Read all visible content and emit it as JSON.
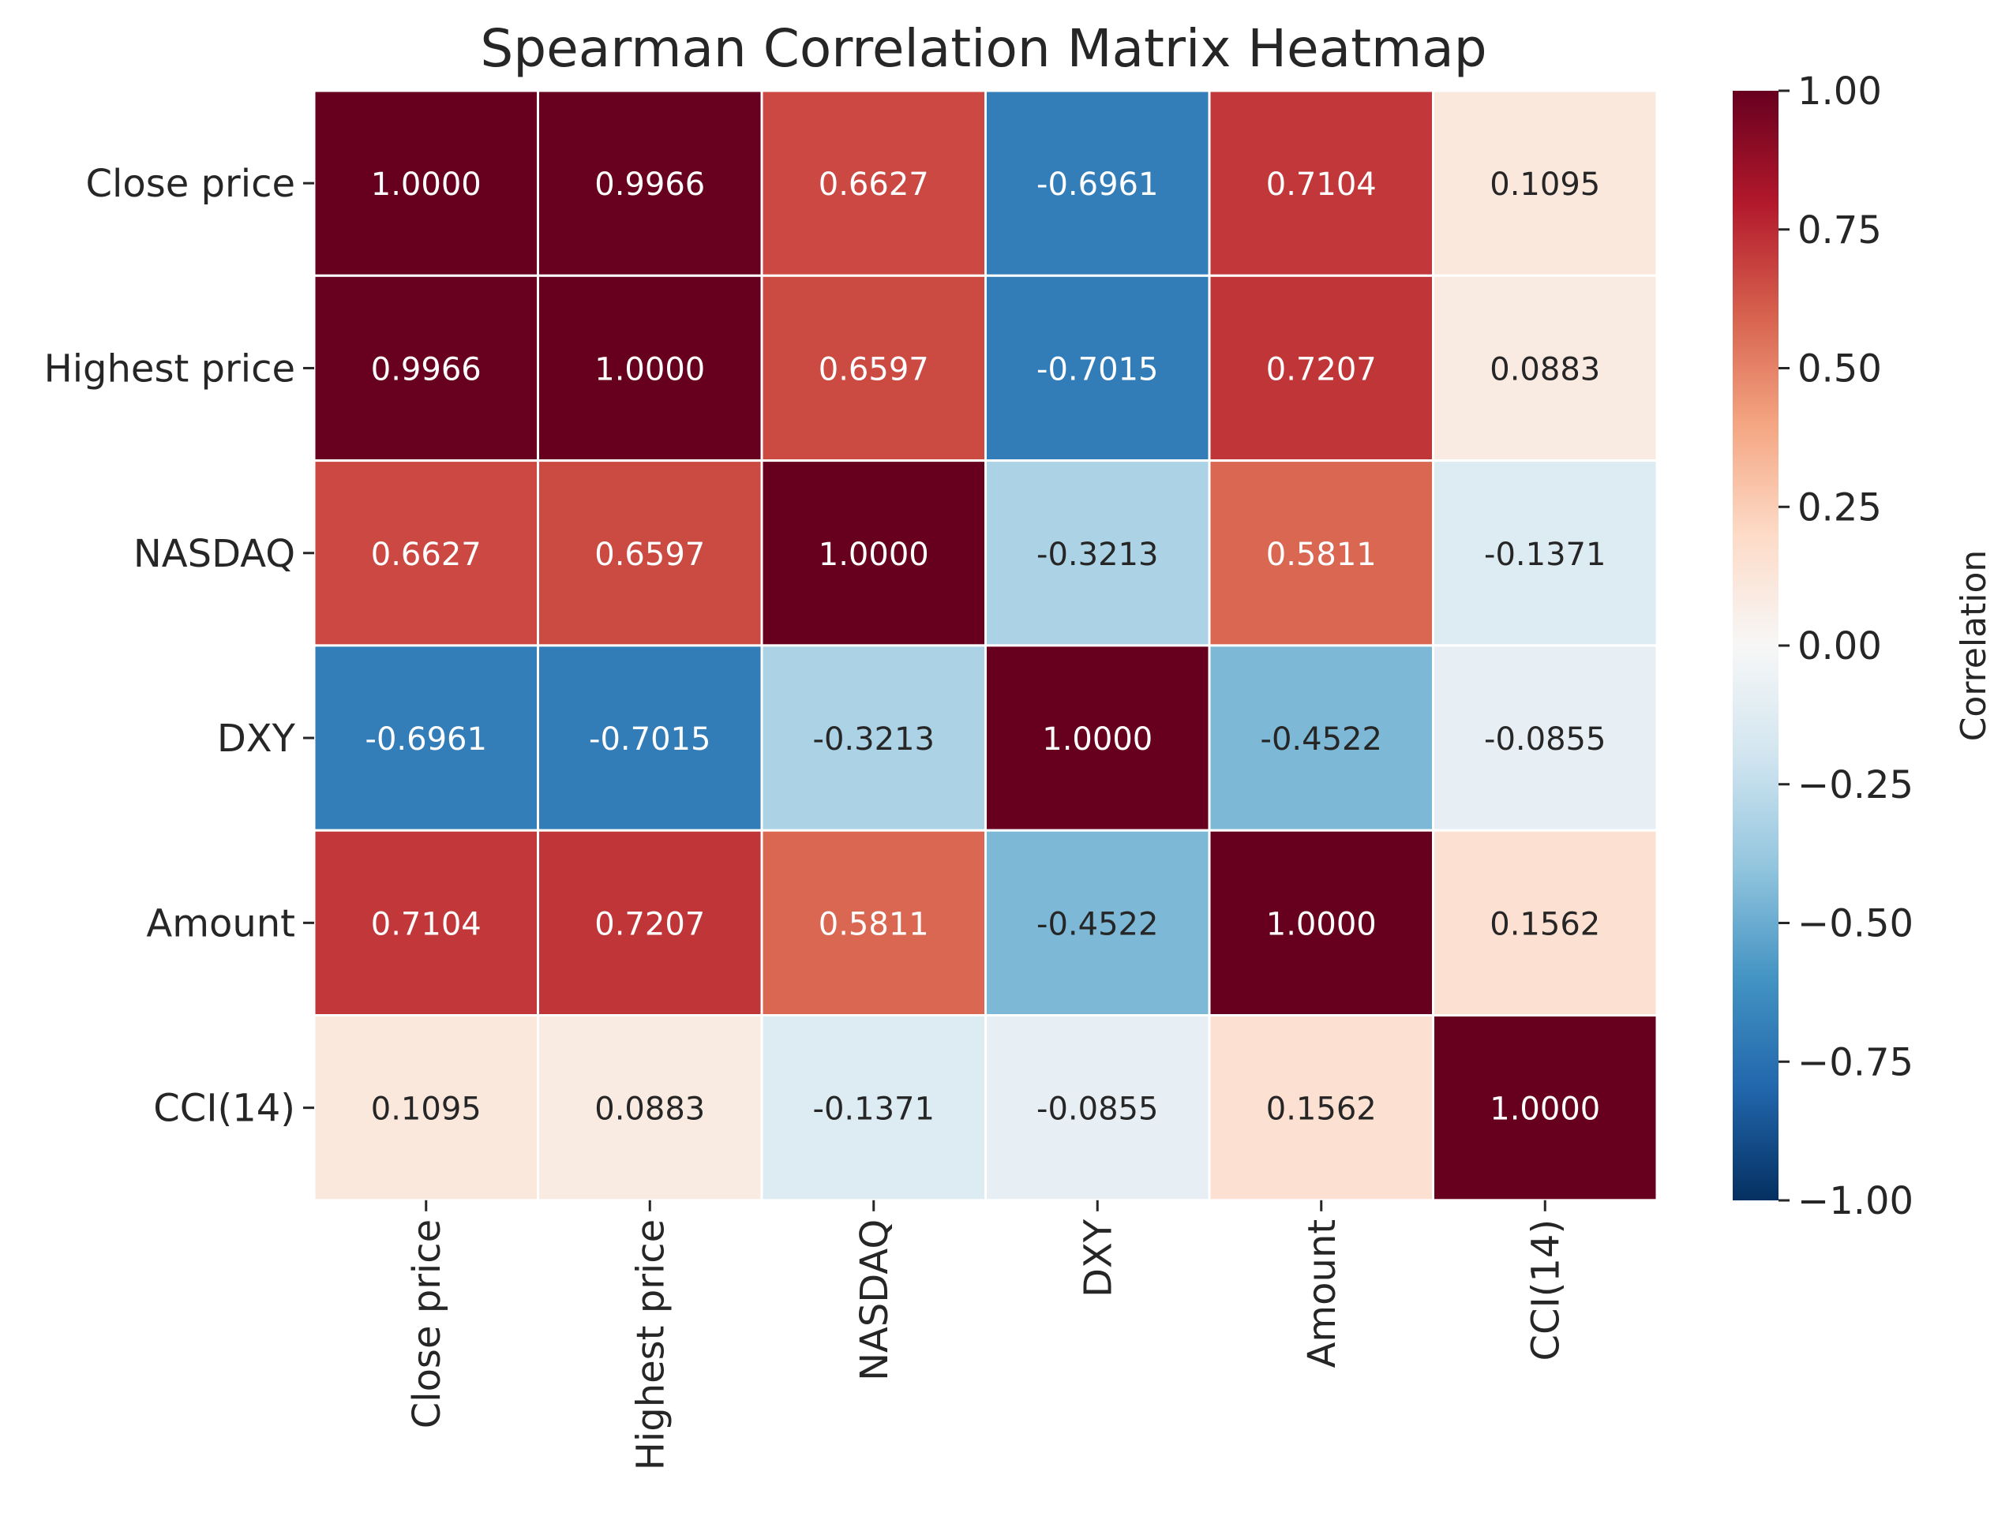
{
  "chart_data": {
    "type": "heatmap",
    "title": "Spearman Correlation Matrix Heatmap",
    "x_labels": [
      "Close price",
      "Highest price",
      "NASDAQ",
      "DXY",
      "Amount",
      "CCI(14)"
    ],
    "y_labels": [
      "Close price",
      "Highest price",
      "NASDAQ",
      "DXY",
      "Amount",
      "CCI(14)"
    ],
    "values": [
      [
        1.0,
        0.9966,
        0.6627,
        -0.6961,
        0.7104,
        0.1095
      ],
      [
        0.9966,
        1.0,
        0.6597,
        -0.7015,
        0.7207,
        0.0883
      ],
      [
        0.6627,
        0.6597,
        1.0,
        -0.3213,
        0.5811,
        -0.1371
      ],
      [
        -0.6961,
        -0.7015,
        -0.3213,
        1.0,
        -0.4522,
        -0.0855
      ],
      [
        0.7104,
        0.7207,
        0.5811,
        -0.4522,
        1.0,
        0.1562
      ],
      [
        0.1095,
        0.0883,
        -0.1371,
        -0.0855,
        0.1562,
        1.0
      ]
    ],
    "value_format_decimals": 4,
    "colormap": "RdBu_r",
    "vmin": -1.0,
    "vmax": 1.0,
    "colorbar": {
      "label": "Correlation",
      "ticks": [
        1.0,
        0.75,
        0.5,
        0.25,
        0.0,
        -0.25,
        -0.5,
        -0.75,
        -1.0
      ],
      "tick_labels": [
        "1.00",
        "0.75",
        "0.50",
        "0.25",
        "0.00",
        "−0.25",
        "−0.50",
        "−0.75",
        "−1.00"
      ]
    },
    "colors": {
      "text": "#262626",
      "grid_line": "#ffffff",
      "light_text": "#ffffff",
      "dark_text": "#262626"
    }
  }
}
